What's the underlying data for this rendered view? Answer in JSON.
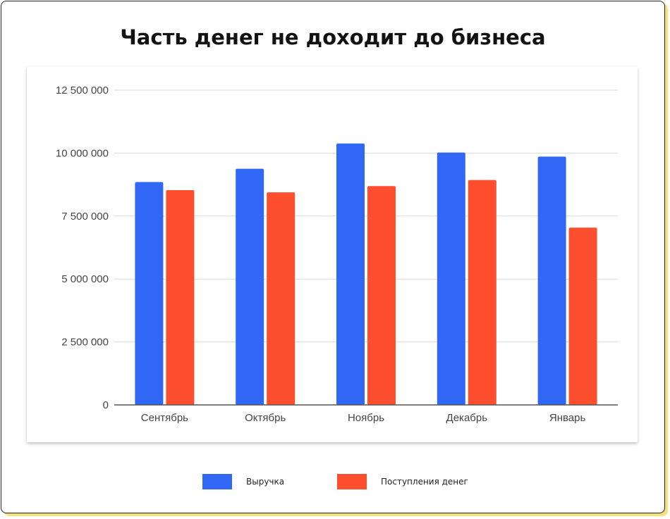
{
  "chart_data": {
    "type": "bar",
    "title": "Часть денег не доходит до бизнеса",
    "categories": [
      "Сентябрь",
      "Октябрь",
      "Ноябрь",
      "Декабрь",
      "Январь"
    ],
    "series": [
      {
        "name": "Выручка",
        "color": "#3067f5",
        "values": [
          8850000,
          9380000,
          10380000,
          10020000,
          9860000
        ]
      },
      {
        "name": "Поступления денег",
        "color": "#fd4e2e",
        "values": [
          8530000,
          8440000,
          8690000,
          8930000,
          7040000
        ]
      }
    ],
    "ylim": [
      0,
      12500000
    ],
    "yticks": [
      0,
      2500000,
      5000000,
      7500000,
      10000000,
      12500000
    ],
    "ytick_labels": [
      "0",
      "2 500 000",
      "5 000 000",
      "7 500 000",
      "10 000 000",
      "12 500 000"
    ],
    "grid": true,
    "legend_position": "bottom"
  }
}
